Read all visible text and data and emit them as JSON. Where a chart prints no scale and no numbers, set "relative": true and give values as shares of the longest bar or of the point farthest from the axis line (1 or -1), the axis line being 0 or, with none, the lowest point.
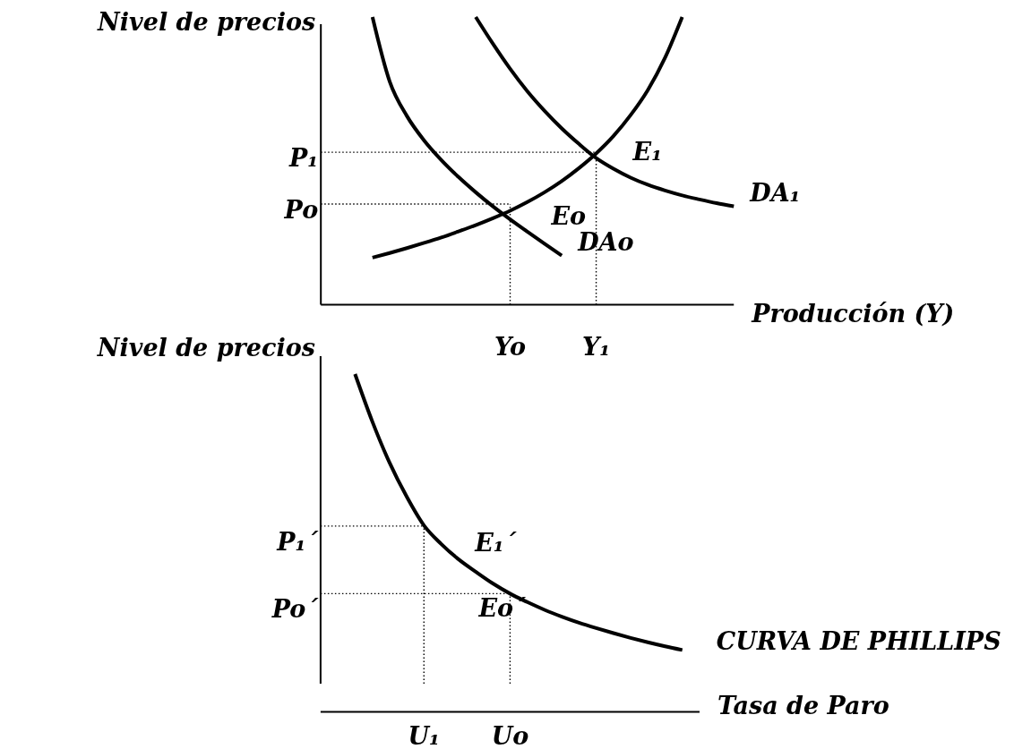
{
  "chart_data": [
    {
      "type": "line",
      "relative": true,
      "ylabel": "Nivel de precios",
      "xlabel": "Producción (Y)",
      "categories": [
        null,
        null,
        null,
        null,
        null,
        null,
        null,
        null,
        null,
        null,
        null,
        "Yo",
        null,
        null,
        null,
        null,
        "Y₁",
        null,
        null,
        null,
        null,
        null,
        null,
        null,
        null
      ],
      "series": [
        {
          "name": "DAo",
          "color": "#000000",
          "values": [
            null,
            null,
            null,
            1.0,
            0.776,
            0.656,
            0.571,
            0.503,
            0.444,
            0.391,
            0.342,
            0.297,
            0.254,
            0.212,
            0.171,
            null,
            null,
            null,
            null,
            null,
            null,
            null,
            null,
            null,
            null
          ]
        },
        {
          "name": "DA₁",
          "color": "#000000",
          "values": [
            null,
            null,
            null,
            null,
            null,
            null,
            null,
            null,
            null,
            1.0,
            0.907,
            0.82,
            0.742,
            0.674,
            0.613,
            0.559,
            0.51,
            0.473,
            0.442,
            0.417,
            0.397,
            0.38,
            0.366,
            0.353,
            0.342
          ]
        },
        {
          "color": "#000000",
          "values": [
            null,
            null,
            null,
            0.164,
            0.18,
            0.197,
            0.215,
            0.234,
            0.255,
            0.277,
            0.301,
            0.327,
            0.357,
            0.391,
            0.43,
            0.475,
            0.526,
            0.586,
            0.659,
            0.746,
            0.858,
            1.0,
            null,
            null,
            null
          ]
        }
      ],
      "ref_lines": [
        {
          "axis": "y",
          "value": 0.53,
          "label": "P₁",
          "line_style": "dotted"
        },
        {
          "axis": "y",
          "value": 0.35,
          "label": "Po",
          "line_style": "dotted"
        },
        {
          "axis": "x",
          "value": "Yo",
          "line_style": "dotted"
        },
        {
          "axis": "x",
          "value": "Y₁",
          "line_style": "dotted"
        }
      ],
      "annotations": [
        {
          "text": "E₁",
          "x": "Y₁",
          "y": 0.53
        },
        {
          "text": "Eo",
          "x": "Yo",
          "y": 0.35
        }
      ]
    },
    {
      "type": "line",
      "relative": true,
      "ylabel": "Nivel de precios",
      "xlabel": "Tasa de Paro",
      "categories": [
        null,
        null,
        null,
        null,
        null,
        null,
        "U₁",
        null,
        null,
        null,
        null,
        "Uo",
        null,
        null,
        null,
        null,
        null,
        null,
        null,
        null,
        null,
        null,
        null
      ],
      "series": [
        {
          "name": "CURVA DE PHILLIPS",
          "color": "#000000",
          "values": [
            null,
            null,
            1.0,
            0.86,
            0.738,
            0.637,
            0.552,
            0.497,
            0.452,
            0.415,
            0.38,
            0.35,
            0.325,
            0.302,
            0.282,
            0.264,
            0.248,
            0.233,
            0.219,
            0.206,
            0.194,
            0.183,
            null
          ]
        }
      ],
      "ref_lines": [
        {
          "axis": "y",
          "value": 0.55,
          "label": "P₁´",
          "line_style": "dotted"
        },
        {
          "axis": "y",
          "value": 0.35,
          "label": "Po´",
          "line_style": "dotted"
        },
        {
          "axis": "x",
          "value": "U₁",
          "line_style": "dotted"
        },
        {
          "axis": "x",
          "value": "Uo",
          "line_style": "dotted"
        }
      ],
      "annotations": [
        {
          "text": "E₁´",
          "x": "U₁",
          "y": 0.55
        },
        {
          "text": "Eo´",
          "x": "Uo",
          "y": 0.35
        }
      ]
    }
  ]
}
